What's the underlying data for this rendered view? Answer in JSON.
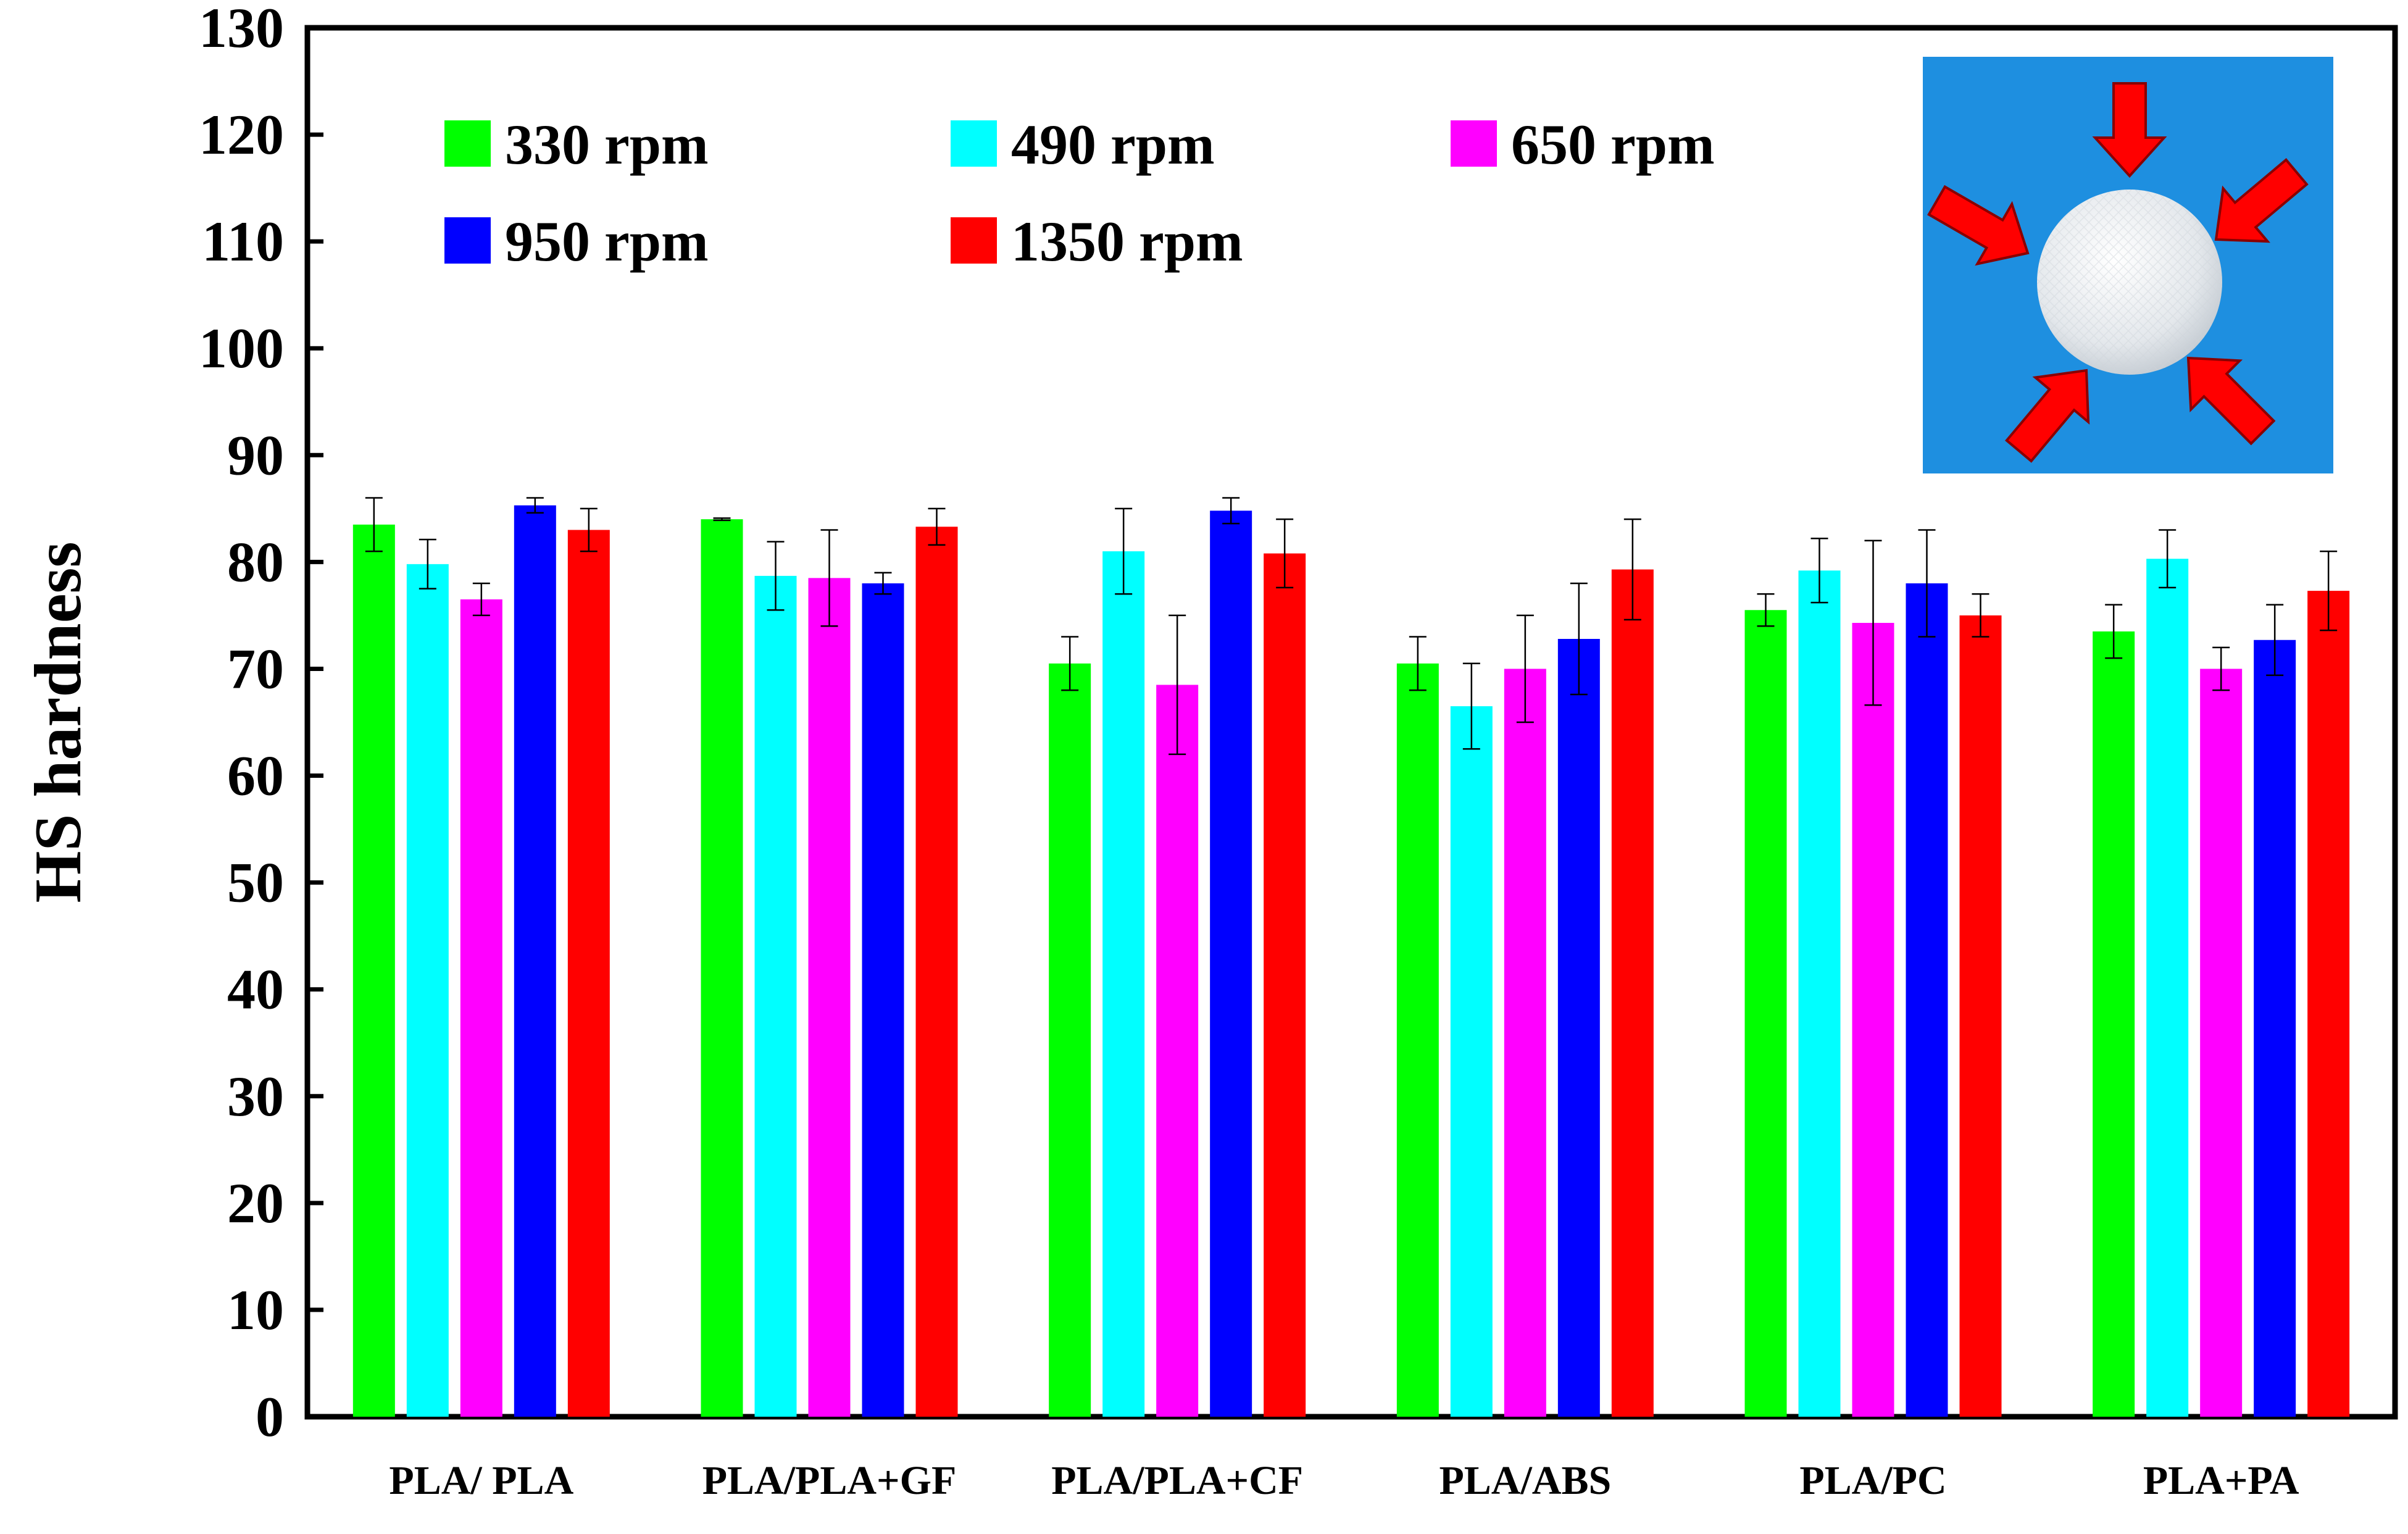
{
  "chart_data": {
    "type": "bar",
    "title": "",
    "xlabel": "",
    "ylabel": "HS hardness",
    "ylim": [
      0,
      130
    ],
    "yticks": [
      0,
      10,
      20,
      30,
      40,
      50,
      60,
      70,
      80,
      90,
      100,
      110,
      120,
      130
    ],
    "categories": [
      "PLA/ PLA",
      "PLA/PLA+GF",
      "PLA/PLA+CF",
      "PLA/ABS",
      "PLA/PC",
      "PLA+PA"
    ],
    "series": [
      {
        "name": "330 rpm",
        "color": "#00ff00",
        "values": [
          83.5,
          84.0,
          70.5,
          70.5,
          75.5,
          73.5
        ],
        "errors": [
          2.5,
          0.1,
          2.5,
          2.5,
          1.5,
          2.5
        ]
      },
      {
        "name": "490 rpm",
        "color": "#00ffff",
        "values": [
          79.8,
          78.7,
          81.0,
          66.5,
          79.2,
          80.3
        ],
        "errors": [
          2.3,
          3.2,
          4.0,
          4.0,
          3.0,
          2.7
        ]
      },
      {
        "name": "650 rpm",
        "color": "#ff00ff",
        "values": [
          76.5,
          78.5,
          68.5,
          70.0,
          74.3,
          70.0
        ],
        "errors": [
          1.5,
          4.5,
          6.5,
          5.0,
          7.7,
          2.0
        ]
      },
      {
        "name": "950 rpm",
        "color": "#0000ff",
        "values": [
          85.3,
          78.0,
          84.8,
          72.8,
          78.0,
          72.7
        ],
        "errors": [
          0.7,
          1.0,
          1.2,
          5.2,
          5.0,
          3.3
        ]
      },
      {
        "name": "1350 rpm",
        "color": "#ff0000",
        "values": [
          83.0,
          83.3,
          80.8,
          79.3,
          75.0,
          77.3
        ],
        "errors": [
          2.0,
          1.7,
          3.2,
          4.7,
          2.0,
          3.7
        ]
      }
    ],
    "legend": "top-left, two rows inside plot",
    "grid": false,
    "inset": {
      "description": "photo of white sphere on blue background with five red arrows pointing inward",
      "background": "#1e8fe0",
      "arrow_color": "#ff0000"
    }
  }
}
